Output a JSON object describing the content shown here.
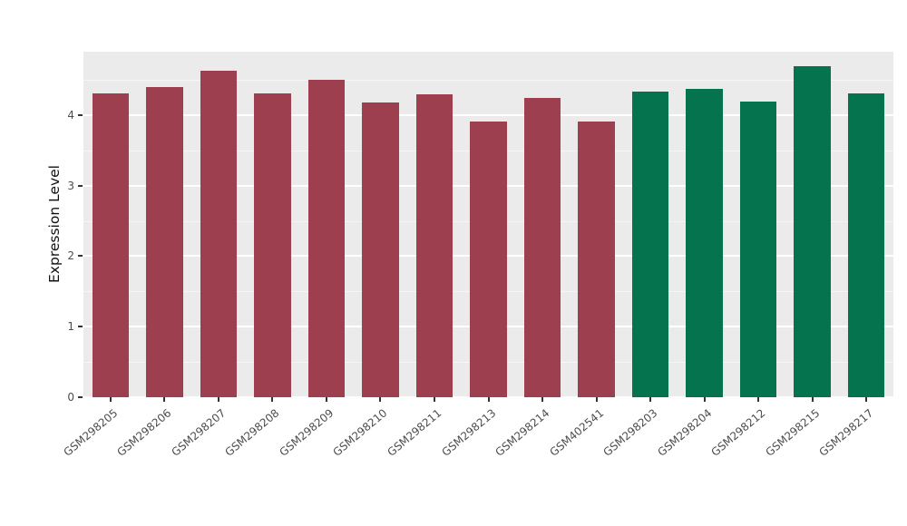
{
  "chart_data": {
    "type": "bar",
    "title": "",
    "xlabel": "",
    "ylabel": "Expression Level",
    "categories": [
      "GSM298205",
      "GSM298206",
      "GSM298207",
      "GSM298208",
      "GSM298209",
      "GSM298210",
      "GSM298211",
      "GSM298213",
      "GSM298214",
      "GSM402541",
      "GSM298203",
      "GSM298204",
      "GSM298212",
      "GSM298215",
      "GSM298217"
    ],
    "values": [
      4.31,
      4.4,
      4.63,
      4.31,
      4.5,
      4.18,
      4.29,
      3.91,
      4.25,
      3.91,
      4.33,
      4.37,
      4.19,
      4.7,
      4.31
    ],
    "bar_colors": [
      "#9E3F4F",
      "#9E3F4F",
      "#9E3F4F",
      "#9E3F4F",
      "#9E3F4F",
      "#9E3F4F",
      "#9E3F4F",
      "#9E3F4F",
      "#9E3F4F",
      "#9E3F4F",
      "#06734F",
      "#06734F",
      "#06734F",
      "#06734F",
      "#06734F"
    ],
    "ylim": [
      0,
      4.9
    ],
    "yticks": [
      0,
      1,
      2,
      3,
      4
    ],
    "yticks_minor": [
      0.5,
      1.5,
      2.5,
      3.5,
      4.5
    ],
    "ytick_labels": [
      "0",
      "1",
      "2",
      "3",
      "4"
    ],
    "grid": true,
    "legend": "none",
    "panel_background": "#EBEBEB",
    "gridline_color": "#FFFFFF",
    "tick_color": "#333333",
    "axis_text_color": "#4D4D4D"
  }
}
